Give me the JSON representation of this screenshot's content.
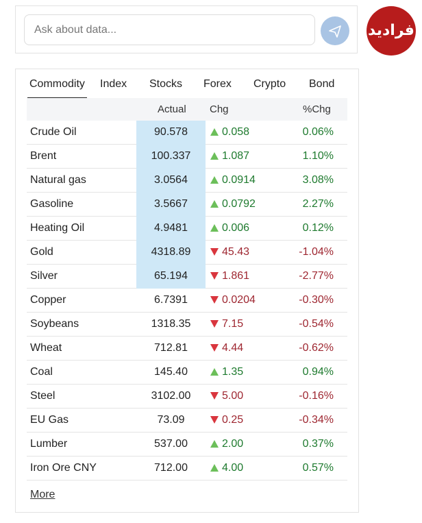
{
  "search": {
    "placeholder": "Ask about data..."
  },
  "logo": {
    "text": "فرادید"
  },
  "tabs": [
    "Commodity",
    "Index",
    "Stocks",
    "Forex",
    "Crypto",
    "Bond"
  ],
  "active_tab": 0,
  "table": {
    "headers": [
      "Actual",
      "Chg",
      "%Chg"
    ],
    "rows": [
      {
        "name": "Crude Oil",
        "actual": "90.578",
        "direction": "up",
        "change": "0.058",
        "pct": "0.06%",
        "highlighted": true
      },
      {
        "name": "Brent",
        "actual": "100.337",
        "direction": "up",
        "change": "1.087",
        "pct": "1.10%",
        "highlighted": true
      },
      {
        "name": "Natural gas",
        "actual": "3.0564",
        "direction": "up",
        "change": "0.0914",
        "pct": "3.08%",
        "highlighted": true
      },
      {
        "name": "Gasoline",
        "actual": "3.5667",
        "direction": "up",
        "change": "0.0792",
        "pct": "2.27%",
        "highlighted": true
      },
      {
        "name": "Heating Oil",
        "actual": "4.9481",
        "direction": "up",
        "change": "0.006",
        "pct": "0.12%",
        "highlighted": true
      },
      {
        "name": "Gold",
        "actual": "4318.89",
        "direction": "down",
        "change": "45.43",
        "pct": "-1.04%",
        "highlighted": true
      },
      {
        "name": "Silver",
        "actual": "65.194",
        "direction": "down",
        "change": "1.861",
        "pct": "-2.77%",
        "highlighted": true
      },
      {
        "name": "Copper",
        "actual": "6.7391",
        "direction": "down",
        "change": "0.0204",
        "pct": "-0.30%",
        "highlighted": false
      },
      {
        "name": "Soybeans",
        "actual": "1318.35",
        "direction": "down",
        "change": "7.15",
        "pct": "-0.54%",
        "highlighted": false
      },
      {
        "name": "Wheat",
        "actual": "712.81",
        "direction": "down",
        "change": "4.44",
        "pct": "-0.62%",
        "highlighted": false
      },
      {
        "name": "Coal",
        "actual": "145.40",
        "direction": "up",
        "change": "1.35",
        "pct": "0.94%",
        "highlighted": false
      },
      {
        "name": "Steel",
        "actual": "3102.00",
        "direction": "down",
        "change": "5.00",
        "pct": "-0.16%",
        "highlighted": false
      },
      {
        "name": "EU Gas",
        "actual": "73.09",
        "direction": "down",
        "change": "0.25",
        "pct": "-0.34%",
        "highlighted": false
      },
      {
        "name": "Lumber",
        "actual": "537.00",
        "direction": "up",
        "change": "2.00",
        "pct": "0.37%",
        "highlighted": false
      },
      {
        "name": "Iron Ore CNY",
        "actual": "712.00",
        "direction": "up",
        "change": "4.00",
        "pct": "0.57%",
        "highlighted": false
      }
    ]
  },
  "more": "More"
}
